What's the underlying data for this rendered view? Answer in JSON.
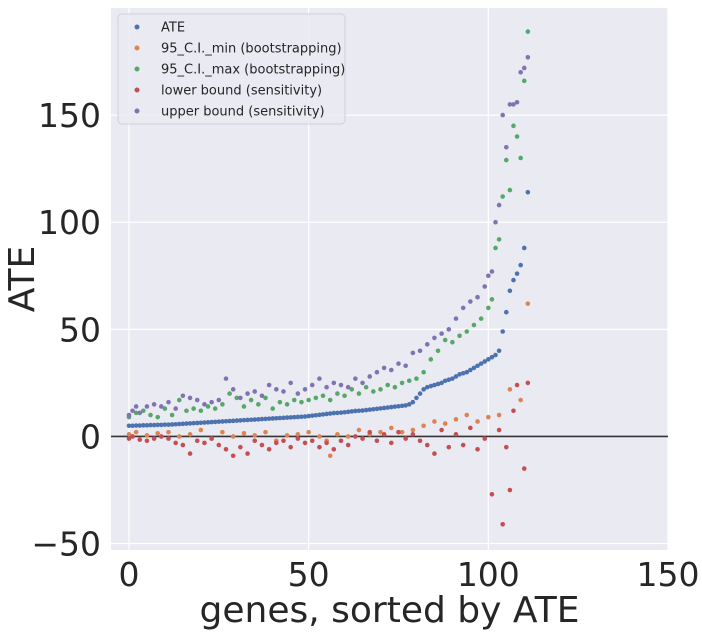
{
  "chart_data": {
    "type": "scatter",
    "xlabel": "genes, sorted by ATE",
    "ylabel": "ATE",
    "xlim": [
      -5,
      150
    ],
    "ylim": [
      -53,
      200
    ],
    "xticks": [
      0,
      50,
      100,
      150
    ],
    "xtick_labels": [
      "0",
      "50",
      "100",
      "150"
    ],
    "yticks": [
      -50,
      0,
      50,
      100,
      150
    ],
    "ytick_labels": [
      "−50",
      "0",
      "50",
      "100",
      "150"
    ],
    "grid": true,
    "legend_position": "top-left",
    "reference_line_y": 0,
    "colors": {
      "background": "#eaeaf2",
      "grid": "#ffffff",
      "reference_line": "#333333",
      "text": "#262626"
    },
    "series": [
      {
        "name": "ATE",
        "color": "#4c72b0",
        "x": [
          0,
          1,
          2,
          3,
          4,
          5,
          6,
          7,
          8,
          9,
          10,
          11,
          12,
          13,
          14,
          15,
          16,
          17,
          18,
          19,
          20,
          21,
          22,
          23,
          24,
          25,
          26,
          27,
          28,
          29,
          30,
          31,
          32,
          33,
          34,
          35,
          36,
          37,
          38,
          39,
          40,
          41,
          42,
          43,
          44,
          45,
          46,
          47,
          48,
          49,
          50,
          51,
          52,
          53,
          54,
          55,
          56,
          57,
          58,
          59,
          60,
          61,
          62,
          63,
          64,
          65,
          66,
          67,
          68,
          69,
          70,
          71,
          72,
          73,
          74,
          75,
          76,
          77,
          78,
          79,
          80,
          81,
          82,
          83,
          84,
          85,
          86,
          87,
          88,
          89,
          90,
          91,
          92,
          93,
          94,
          95,
          96,
          97,
          98,
          99,
          100,
          101,
          102,
          103,
          104,
          105,
          106,
          107,
          108,
          109,
          110,
          111
        ],
        "values": [
          5.0,
          5.0,
          5.1,
          5.1,
          5.2,
          5.2,
          5.3,
          5.3,
          5.4,
          5.4,
          5.5,
          5.5,
          5.6,
          5.7,
          5.8,
          5.9,
          6.0,
          6.1,
          6.2,
          6.3,
          6.4,
          6.5,
          6.6,
          6.7,
          6.8,
          6.9,
          7.0,
          7.1,
          7.2,
          7.3,
          7.4,
          7.5,
          7.6,
          7.7,
          7.8,
          7.9,
          8.0,
          8.1,
          8.2,
          8.3,
          8.4,
          8.5,
          8.6,
          8.7,
          8.8,
          8.9,
          9.0,
          9.1,
          9.2,
          9.3,
          9.5,
          9.7,
          9.9,
          10.1,
          10.3,
          10.5,
          10.7,
          10.9,
          11.0,
          11.1,
          11.3,
          11.5,
          11.7,
          11.9,
          12.0,
          12.1,
          12.3,
          12.5,
          12.7,
          12.9,
          13.1,
          13.3,
          13.5,
          13.7,
          13.9,
          14.1,
          14.3,
          14.5,
          15.0,
          16.0,
          18.0,
          20.0,
          22.0,
          23.0,
          23.5,
          24.0,
          24.5,
          25.0,
          26.0,
          26.5,
          27.0,
          28.0,
          29.0,
          29.5,
          30.0,
          31.0,
          32.0,
          33.0,
          34.0,
          35.0,
          36.0,
          37.0,
          38.0,
          40.0,
          49.0,
          58.0,
          68.0,
          73.0,
          76.0,
          80.0,
          88.0,
          114.0
        ]
      },
      {
        "name": "95_C.I._min (bootstrapping)",
        "color": "#dd8452",
        "x": [
          0,
          2,
          5,
          8,
          11,
          14,
          17,
          20,
          23,
          26,
          29,
          32,
          35,
          38,
          41,
          44,
          47,
          50,
          53,
          55,
          56,
          58,
          61,
          64,
          67,
          70,
          73,
          76,
          79,
          82,
          85,
          88,
          91,
          94,
          97,
          100,
          103,
          106,
          109,
          111
        ],
        "values": [
          1.0,
          2.0,
          0.5,
          1.5,
          2.0,
          0.0,
          1.0,
          3.0,
          -1.0,
          2.0,
          0.0,
          1.5,
          0.5,
          2.0,
          -2.0,
          0.5,
          1.0,
          2.0,
          0.0,
          -2.0,
          -9.0,
          1.0,
          0.0,
          3.0,
          1.0,
          2.0,
          4.0,
          2.0,
          3.0,
          5.0,
          7.0,
          6.0,
          8.0,
          10.0,
          7.0,
          9.0,
          10.0,
          22.0,
          17.0,
          62.0
        ]
      },
      {
        "name": "95_C.I._max (bootstrapping)",
        "color": "#55a868",
        "x": [
          0,
          2,
          4,
          6,
          8,
          10,
          12,
          14,
          16,
          18,
          20,
          22,
          24,
          26,
          28,
          30,
          32,
          34,
          36,
          38,
          40,
          42,
          44,
          46,
          48,
          50,
          52,
          54,
          56,
          58,
          60,
          62,
          64,
          66,
          68,
          70,
          72,
          74,
          76,
          78,
          80,
          82,
          84,
          86,
          88,
          90,
          92,
          94,
          96,
          98,
          100,
          101,
          102,
          103,
          104,
          105,
          106,
          107,
          108,
          109,
          110,
          111
        ],
        "values": [
          9.0,
          11.0,
          12.0,
          10.0,
          9.0,
          13.0,
          10.0,
          17.0,
          12.0,
          13.0,
          12.0,
          14.0,
          13.0,
          15.0,
          20.0,
          18.0,
          14.0,
          17.0,
          15.0,
          18.0,
          13.0,
          16.0,
          15.0,
          17.0,
          16.0,
          17.0,
          18.0,
          19.0,
          17.0,
          20.0,
          19.0,
          22.0,
          20.0,
          23.0,
          21.0,
          22.0,
          24.0,
          23.0,
          25.0,
          26.0,
          27.0,
          30.0,
          36.0,
          40.0,
          45.0,
          44.0,
          47.0,
          49.0,
          52.0,
          55.0,
          60.0,
          64.0,
          88.0,
          92.0,
          112.0,
          129.0,
          115.0,
          145.0,
          140.0,
          130.0,
          166.0,
          189.0
        ]
      },
      {
        "name": "lower bound (sensitivity)",
        "color": "#c44e52",
        "x": [
          0,
          1,
          3,
          5,
          7,
          9,
          11,
          13,
          15,
          17,
          19,
          21,
          23,
          25,
          27,
          29,
          31,
          33,
          35,
          37,
          39,
          41,
          43,
          45,
          47,
          49,
          51,
          53,
          55,
          57,
          59,
          61,
          63,
          65,
          67,
          69,
          71,
          73,
          75,
          77,
          79,
          81,
          83,
          85,
          87,
          89,
          91,
          93,
          95,
          97,
          99,
          101,
          103,
          104,
          105,
          106,
          107,
          108,
          110,
          111
        ],
        "values": [
          -1.0,
          0.0,
          -1.5,
          -2.0,
          -1.0,
          0.0,
          -1.0,
          -3.0,
          -4.0,
          -8.0,
          -2.0,
          -3.0,
          -1.0,
          -4.0,
          -6.0,
          -9.0,
          -5.0,
          -8.0,
          -2.0,
          -4.0,
          -6.0,
          -3.0,
          -2.0,
          -5.0,
          -1.0,
          -3.0,
          -2.0,
          -5.0,
          -3.0,
          -6.0,
          -2.0,
          -4.0,
          0.0,
          -1.0,
          2.0,
          -2.0,
          1.0,
          -3.0,
          2.0,
          -1.0,
          1.0,
          -2.0,
          -4.0,
          -8.0,
          3.0,
          -5.0,
          1.0,
          -4.0,
          4.0,
          -6.0,
          -1.0,
          -27.0,
          3.0,
          -41.0,
          -5.0,
          -25.0,
          12.0,
          24.0,
          -15.0,
          25.0
        ]
      },
      {
        "name": "upper bound (sensitivity)",
        "color": "#8172b2",
        "x": [
          0,
          1,
          2,
          3,
          5,
          7,
          9,
          11,
          13,
          15,
          17,
          19,
          21,
          23,
          25,
          27,
          29,
          31,
          33,
          35,
          37,
          39,
          41,
          43,
          45,
          47,
          49,
          51,
          53,
          55,
          57,
          59,
          61,
          63,
          65,
          67,
          69,
          71,
          73,
          75,
          77,
          79,
          81,
          83,
          85,
          87,
          89,
          91,
          93,
          95,
          97,
          99,
          100,
          101,
          102,
          103,
          104,
          105,
          106,
          107,
          108,
          109,
          110,
          111
        ],
        "values": [
          10.0,
          12.0,
          14.0,
          11.0,
          14.0,
          15.0,
          14.0,
          16.0,
          13.0,
          19.0,
          18.0,
          17.0,
          15.0,
          16.0,
          17.0,
          27.0,
          22.0,
          18.0,
          20.0,
          21.0,
          19.0,
          24.0,
          22.0,
          21.0,
          25.0,
          20.0,
          22.0,
          24.0,
          27.0,
          23.0,
          25.0,
          24.0,
          23.0,
          27.0,
          25.0,
          28.0,
          30.0,
          32.0,
          31.0,
          34.0,
          33.0,
          39.0,
          40.0,
          43.0,
          46.0,
          48.0,
          50.0,
          55.0,
          60.0,
          63.0,
          65.0,
          70.0,
          75.0,
          77.0,
          100.0,
          108.0,
          150.0,
          135.0,
          155.0,
          155.0,
          156.0,
          170.0,
          172.0,
          177.0
        ]
      }
    ]
  }
}
